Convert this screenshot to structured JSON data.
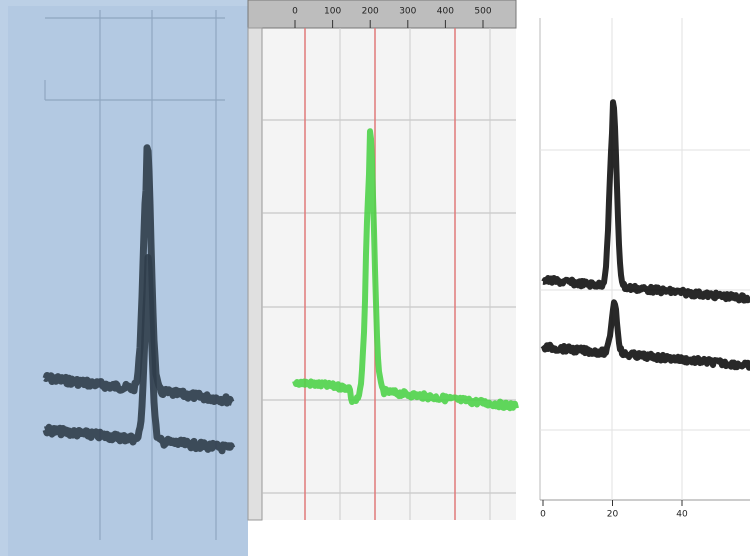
{
  "green_panel": {
    "x_ticks": [
      0,
      100,
      200,
      300,
      400,
      500
    ]
  },
  "black_panel": {
    "x_ticks": [
      0,
      20,
      40
    ]
  }
}
